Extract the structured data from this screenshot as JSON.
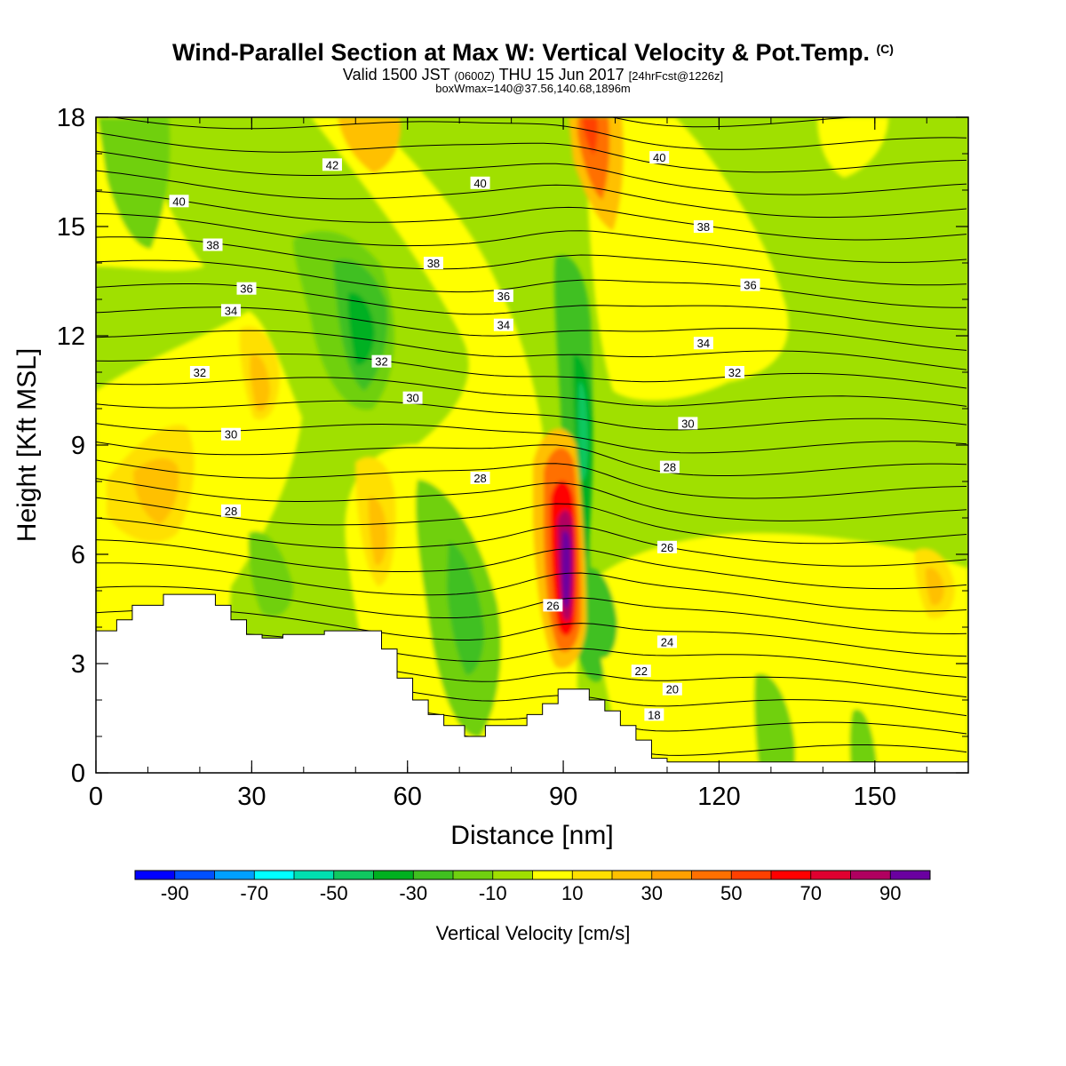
{
  "title": {
    "main": "Wind-Parallel Section at Max W: Vertical Velocity & Pot.Temp.",
    "copyright": "(C)",
    "valid_prefix": "Valid 1500 JST",
    "valid_zulu": "(0600Z)",
    "valid_date": "THU 15 Jun 2017",
    "forecast": "[24hrFcst@1226z]",
    "box_info": "boxWmax=140@37.56,140.68,1896m"
  },
  "chart_data": {
    "type": "heatmap",
    "xlabel": "Distance [nm]",
    "ylabel": "Height [Kft MSL]",
    "xlim": [
      0,
      168
    ],
    "ylim": [
      0,
      18
    ],
    "x_ticks": [
      0,
      30,
      60,
      90,
      120,
      150
    ],
    "y_ticks": [
      0,
      3,
      6,
      9,
      12,
      15,
      18
    ],
    "colorbar": {
      "label": "Vertical Velocity [cm/s]",
      "ticks": [
        "-90",
        "-70",
        "-50",
        "-30",
        "-10",
        "10",
        "30",
        "50",
        "70",
        "90"
      ],
      "levels": [
        -100,
        -90,
        -80,
        -70,
        -60,
        -50,
        -40,
        -30,
        -20,
        -10,
        0,
        10,
        20,
        30,
        40,
        50,
        60,
        70,
        80,
        90,
        100
      ],
      "colors": [
        "#0000ff",
        "#0050ff",
        "#00a0ff",
        "#00ffff",
        "#00e0b0",
        "#10c860",
        "#00b020",
        "#40c020",
        "#70d010",
        "#a0e000",
        "#ffff00",
        "#ffe000",
        "#ffc000",
        "#ffa000",
        "#ff7000",
        "#ff4000",
        "#ff0000",
        "#e00030",
        "#b00060",
        "#6a00a0"
      ]
    },
    "terrain": [
      [
        0,
        3.9
      ],
      [
        4,
        4.2
      ],
      [
        7,
        4.6
      ],
      [
        13,
        4.9
      ],
      [
        19,
        4.9
      ],
      [
        23,
        4.6
      ],
      [
        26,
        4.2
      ],
      [
        29,
        3.8
      ],
      [
        32,
        3.7
      ],
      [
        36,
        3.8
      ],
      [
        44,
        3.9
      ],
      [
        52,
        3.9
      ],
      [
        55,
        3.4
      ],
      [
        58,
        2.6
      ],
      [
        61,
        2.0
      ],
      [
        64,
        1.6
      ],
      [
        67,
        1.3
      ],
      [
        71,
        1.0
      ],
      [
        75,
        1.3
      ],
      [
        80,
        1.3
      ],
      [
        83,
        1.6
      ],
      [
        86,
        1.9
      ],
      [
        89,
        2.3
      ],
      [
        92,
        2.3
      ],
      [
        95,
        2.0
      ],
      [
        98,
        1.7
      ],
      [
        101,
        1.3
      ],
      [
        104,
        0.9
      ],
      [
        107,
        0.4
      ],
      [
        110,
        0.3
      ],
      [
        168,
        0.3
      ]
    ],
    "theta_labels": [
      {
        "text": "42",
        "x": 45.5,
        "y": 16.7
      },
      {
        "text": "40",
        "x": 16,
        "y": 15.7
      },
      {
        "text": "40",
        "x": 74,
        "y": 16.2
      },
      {
        "text": "40",
        "x": 108.5,
        "y": 16.9
      },
      {
        "text": "38",
        "x": 22.5,
        "y": 14.5
      },
      {
        "text": "38",
        "x": 65,
        "y": 14.0
      },
      {
        "text": "38",
        "x": 117,
        "y": 15.0
      },
      {
        "text": "36",
        "x": 29,
        "y": 13.3
      },
      {
        "text": "36",
        "x": 78.5,
        "y": 13.1
      },
      {
        "text": "36",
        "x": 126,
        "y": 13.4
      },
      {
        "text": "34",
        "x": 26,
        "y": 12.7
      },
      {
        "text": "34",
        "x": 78.5,
        "y": 12.3
      },
      {
        "text": "34",
        "x": 117,
        "y": 11.8
      },
      {
        "text": "32",
        "x": 20,
        "y": 11.0
      },
      {
        "text": "32",
        "x": 55,
        "y": 11.3
      },
      {
        "text": "32",
        "x": 123,
        "y": 11.0
      },
      {
        "text": "30",
        "x": 26,
        "y": 9.3
      },
      {
        "text": "30",
        "x": 61,
        "y": 10.3
      },
      {
        "text": "30",
        "x": 114,
        "y": 9.6
      },
      {
        "text": "28",
        "x": 26,
        "y": 7.2
      },
      {
        "text": "28",
        "x": 74,
        "y": 8.1
      },
      {
        "text": "28",
        "x": 110.5,
        "y": 8.4
      },
      {
        "text": "26",
        "x": 110,
        "y": 6.2
      },
      {
        "text": "26",
        "x": 88,
        "y": 4.6
      },
      {
        "text": "24",
        "x": 110,
        "y": 3.6
      },
      {
        "text": "22",
        "x": 105,
        "y": 2.8
      },
      {
        "text": "20",
        "x": 111,
        "y": 2.3
      },
      {
        "text": "18",
        "x": 107.5,
        "y": 1.6
      }
    ]
  }
}
